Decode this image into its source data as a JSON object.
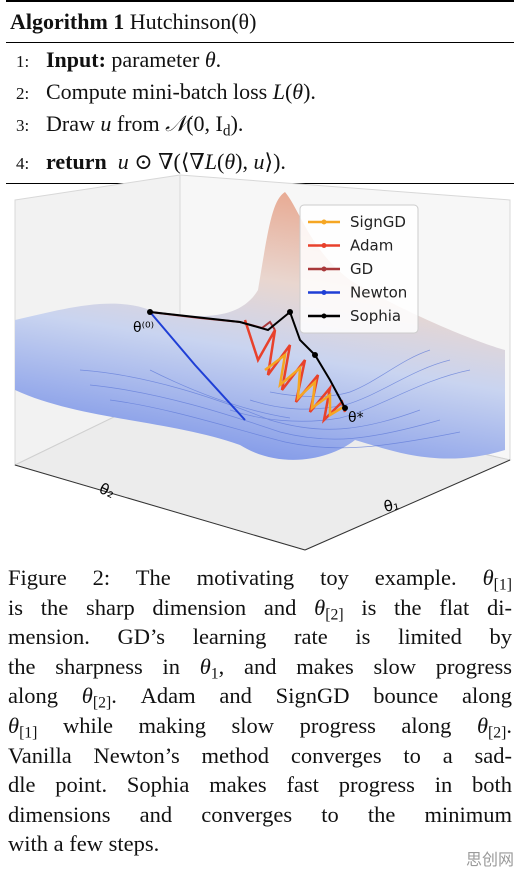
{
  "algorithm": {
    "label": "Algorithm 1",
    "name": "Hutchinson(θ)",
    "lines": [
      {
        "number": "1:",
        "segments": [
          {
            "text": "Input:",
            "style": "bold"
          },
          " parameter ",
          {
            "text": "θ",
            "style": "italic"
          },
          "."
        ]
      },
      {
        "number": "2:",
        "segments": [
          "Compute mini-batch loss ",
          {
            "text": "L",
            "style": "italic"
          },
          "(",
          {
            "text": "θ",
            "style": "italic"
          },
          ")."
        ]
      },
      {
        "number": "3:",
        "segments": [
          "Draw ",
          {
            "text": "u",
            "style": "italic"
          },
          " from ",
          {
            "text": "𝒩",
            "style": "italic"
          },
          "(0, I",
          {
            "text": "d",
            "style": "sub"
          },
          ")."
        ]
      },
      {
        "number": "4:",
        "segments": [
          {
            "text": "return",
            "style": "bold"
          },
          "  ",
          {
            "text": "u",
            "style": "italic"
          },
          " ⊙ ∇(⟨∇",
          {
            "text": "L",
            "style": "italic"
          },
          "(",
          {
            "text": "θ",
            "style": "italic"
          },
          "), ",
          {
            "text": "u",
            "style": "italic"
          },
          "⟩)."
        ]
      }
    ]
  },
  "figure": {
    "legend": [
      {
        "name": "SignGD",
        "color": "#f5a623"
      },
      {
        "name": "Adam",
        "color": "#e8412c"
      },
      {
        "name": "GD",
        "color": "#a8383a"
      },
      {
        "name": "Newton",
        "color": "#1f3fd6"
      },
      {
        "name": "Sophia",
        "color": "#000000"
      }
    ],
    "start_label": "θ⁽⁰⁾",
    "optimum_label": "θ*",
    "x_axis_label": "θ₁",
    "y_axis_label": "θ₂"
  },
  "caption": [
    [
      "Figure 2: The motivating toy example. ",
      {
        "text": "θ",
        "style": "italic"
      },
      {
        "text": "[1]",
        "style": "sub"
      }
    ],
    [
      "is the sharp dimension and ",
      {
        "text": "θ",
        "style": "italic"
      },
      {
        "text": "[2]",
        "style": "sub"
      },
      " is the flat di-"
    ],
    [
      "mension.  GD’s learning rate is limited by"
    ],
    [
      "the sharpness in ",
      {
        "text": "θ",
        "style": "italic"
      },
      {
        "text": "1",
        "style": "sub"
      },
      ", and makes slow progress"
    ],
    [
      "along ",
      {
        "text": "θ",
        "style": "italic"
      },
      {
        "text": "[2]",
        "style": "sub"
      },
      ".  Adam and SignGD bounce along"
    ],
    [
      {
        "text": "θ",
        "style": "italic"
      },
      {
        "text": "[1]",
        "style": "sub"
      },
      " while making slow progress along ",
      {
        "text": "θ",
        "style": "italic"
      },
      {
        "text": "[2]",
        "style": "sub"
      },
      "."
    ],
    [
      "Vanilla Newton’s method converges to a sad-"
    ],
    [
      "dle point. Sophia makes fast progress in both"
    ],
    [
      "dimensions and converges to the minimum"
    ],
    [
      "with a few steps."
    ]
  ],
  "watermark": "思创网"
}
